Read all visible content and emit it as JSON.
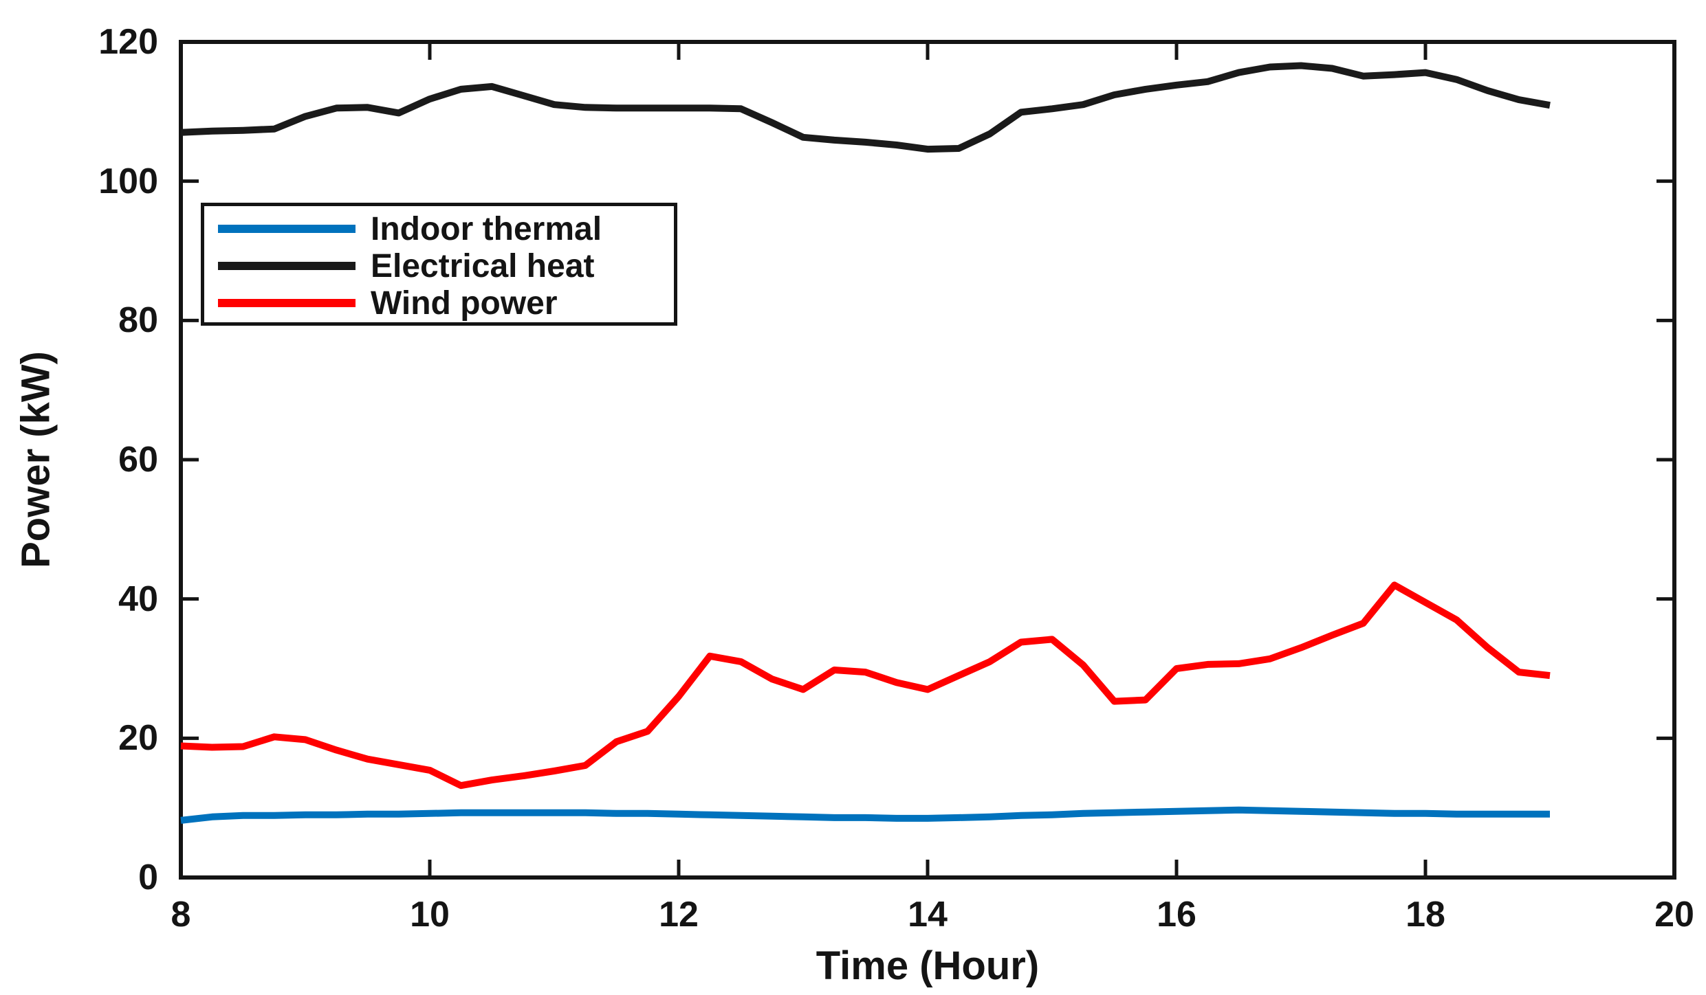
{
  "chart_data": {
    "type": "line",
    "title": "",
    "xlabel": "Time (Hour)",
    "ylabel": "Power (kW)",
    "xlim": [
      8,
      20
    ],
    "ylim": [
      0,
      120
    ],
    "xticks": [
      "8",
      "10",
      "12",
      "14",
      "16",
      "18",
      "20"
    ],
    "xtick_values": [
      8,
      10,
      12,
      14,
      16,
      18,
      20
    ],
    "yticks": [
      "0",
      "20",
      "40",
      "60",
      "80",
      "100",
      "120"
    ],
    "ytick_values": [
      0,
      20,
      40,
      60,
      80,
      100,
      120
    ],
    "grid": false,
    "box": true,
    "tick_direction": "in",
    "axis_color": "#141414",
    "background_color": "#ffffff",
    "legend_position": "upper-left-inside",
    "x": [
      8,
      8.25,
      8.5,
      8.75,
      9,
      9.25,
      9.5,
      9.75,
      10,
      10.25,
      10.5,
      10.75,
      11,
      11.25,
      11.5,
      11.75,
      12,
      12.25,
      12.5,
      12.75,
      13,
      13.25,
      13.5,
      13.75,
      14,
      14.25,
      14.5,
      14.75,
      15,
      15.25,
      15.5,
      15.75,
      16,
      16.25,
      16.5,
      16.75,
      17,
      17.25,
      17.5,
      17.75,
      18,
      18.25,
      18.5,
      18.75,
      19
    ],
    "series": [
      {
        "name": "Indoor thermal",
        "color": "#0072BD",
        "values": [
          8.2,
          8.7,
          8.9,
          8.9,
          9,
          9,
          9.1,
          9.1,
          9.2,
          9.3,
          9.3,
          9.3,
          9.3,
          9.3,
          9.2,
          9.2,
          9.1,
          9,
          8.9,
          8.8,
          8.7,
          8.6,
          8.6,
          8.5,
          8.5,
          8.6,
          8.7,
          8.9,
          9,
          9.2,
          9.3,
          9.4,
          9.5,
          9.6,
          9.7,
          9.6,
          9.5,
          9.4,
          9.3,
          9.2,
          9.2,
          9.1,
          9.1,
          9.1,
          9.1
        ]
      },
      {
        "name": "Electrical heat",
        "color": "#1a1a1a",
        "values": [
          107,
          107.2,
          107.3,
          107.5,
          109.3,
          110.5,
          110.6,
          109.8,
          111.8,
          113.2,
          113.6,
          112.3,
          111,
          110.6,
          110.5,
          110.5,
          110.5,
          110.5,
          110.4,
          108.4,
          106.3,
          105.9,
          105.6,
          105.2,
          104.6,
          104.7,
          106.8,
          109.9,
          110.4,
          111,
          112.4,
          113.2,
          113.8,
          114.3,
          115.6,
          116.4,
          116.6,
          116.2,
          115.1,
          115.3,
          115.6,
          114.6,
          113,
          111.7,
          110.9
        ]
      },
      {
        "name": "Wind power",
        "color": "#FF0000",
        "values": [
          18.9,
          18.7,
          18.8,
          20.2,
          19.8,
          18.3,
          17,
          16.2,
          15.4,
          13.2,
          14,
          14.6,
          15.3,
          16.1,
          19.5,
          21,
          26,
          31.8,
          31,
          28.5,
          27,
          29.8,
          29.5,
          28,
          27,
          29,
          31,
          33.8,
          34.2,
          30.5,
          25.3,
          25.5,
          30,
          30.6,
          30.7,
          31.4,
          33,
          34.8,
          36.5,
          42,
          39.5,
          37,
          33,
          29.5,
          29
        ]
      }
    ]
  }
}
